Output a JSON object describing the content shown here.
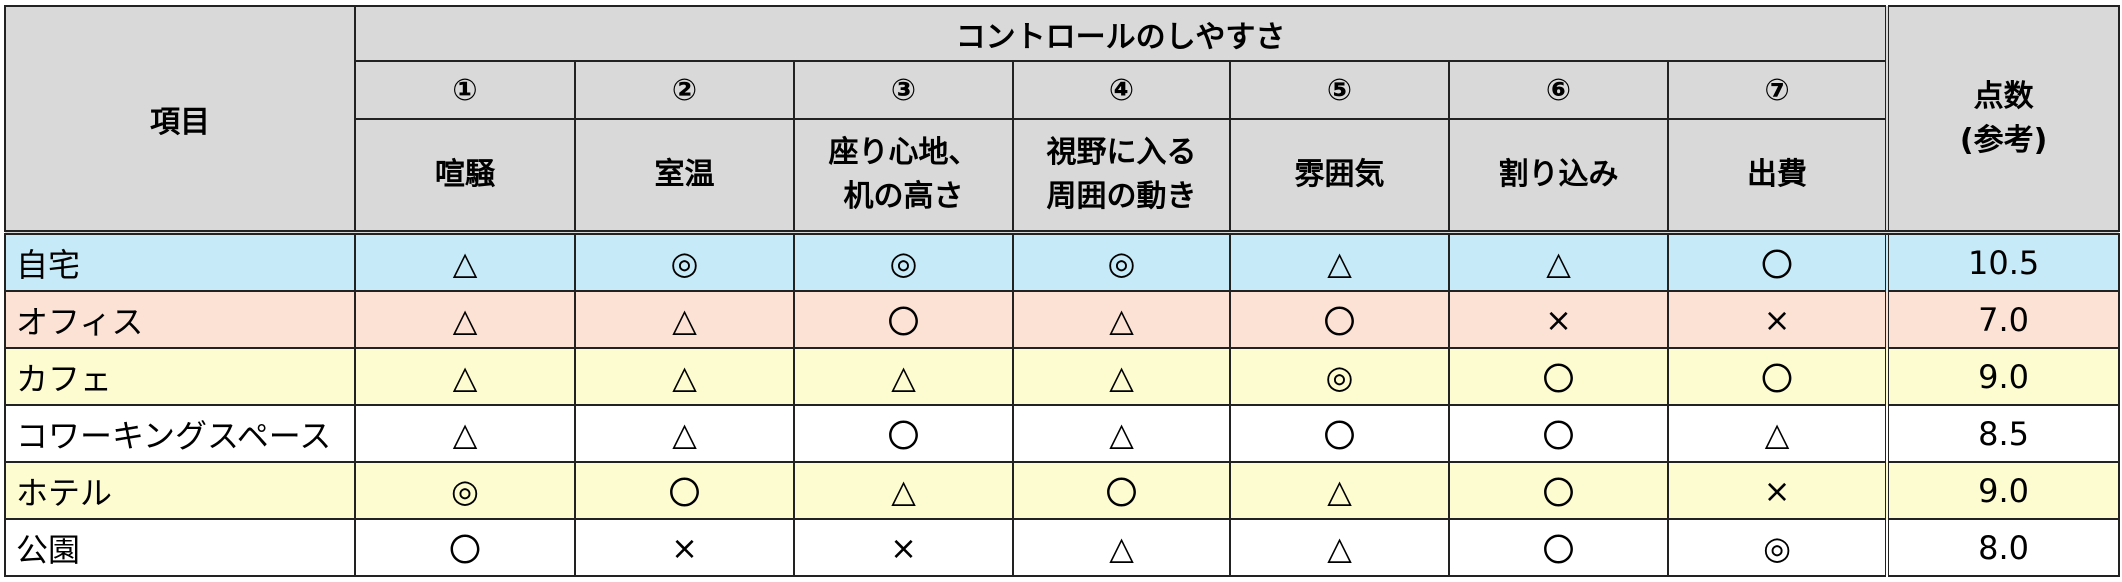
{
  "header": {
    "item_label": "項目",
    "group_label": "コントロールのしやすさ",
    "score_label": "点数\n(参考)",
    "score_line1": "点数",
    "score_line2": "(参考)",
    "columns": [
      {
        "num": "①",
        "label": "喧騒"
      },
      {
        "num": "②",
        "label": "室温"
      },
      {
        "num": "③",
        "label": "座り心地、机の高さ",
        "line1": "座り心地、",
        "line2": "机の高さ"
      },
      {
        "num": "④",
        "label": "視野に入る周囲の動き",
        "line1": "視野に入る",
        "line2": "周囲の動き"
      },
      {
        "num": "⑤",
        "label": "雰囲気"
      },
      {
        "num": "⑥",
        "label": "割り込み"
      },
      {
        "num": "⑦",
        "label": "出費"
      }
    ]
  },
  "rows": [
    {
      "name": "自宅",
      "bg": "#c6eaf8",
      "marks": [
        "△",
        "◎",
        "◎",
        "◎",
        "△",
        "△",
        "〇"
      ],
      "score": "10.5"
    },
    {
      "name": "オフィス",
      "bg": "#fce1d5",
      "marks": [
        "△",
        "△",
        "〇",
        "△",
        "〇",
        "×",
        "×"
      ],
      "score": "7.0"
    },
    {
      "name": "カフェ",
      "bg": "#fdfbd0",
      "marks": [
        "△",
        "△",
        "△",
        "△",
        "◎",
        "〇",
        "〇"
      ],
      "score": "9.0"
    },
    {
      "name": "コワーキングスペース",
      "bg": "#ffffff",
      "marks": [
        "△",
        "△",
        "〇",
        "△",
        "〇",
        "〇",
        "△"
      ],
      "score": "8.5"
    },
    {
      "name": "ホテル",
      "bg": "#fdfbd0",
      "marks": [
        "◎",
        "〇",
        "△",
        "〇",
        "△",
        "〇",
        "×"
      ],
      "score": "9.0"
    },
    {
      "name": "公園",
      "bg": "#ffffff",
      "marks": [
        "〇",
        "×",
        "×",
        "△",
        "△",
        "〇",
        "◎"
      ],
      "score": "8.0"
    }
  ],
  "colors": {
    "header_bg": "#d9d9d9",
    "border": "#222222"
  }
}
